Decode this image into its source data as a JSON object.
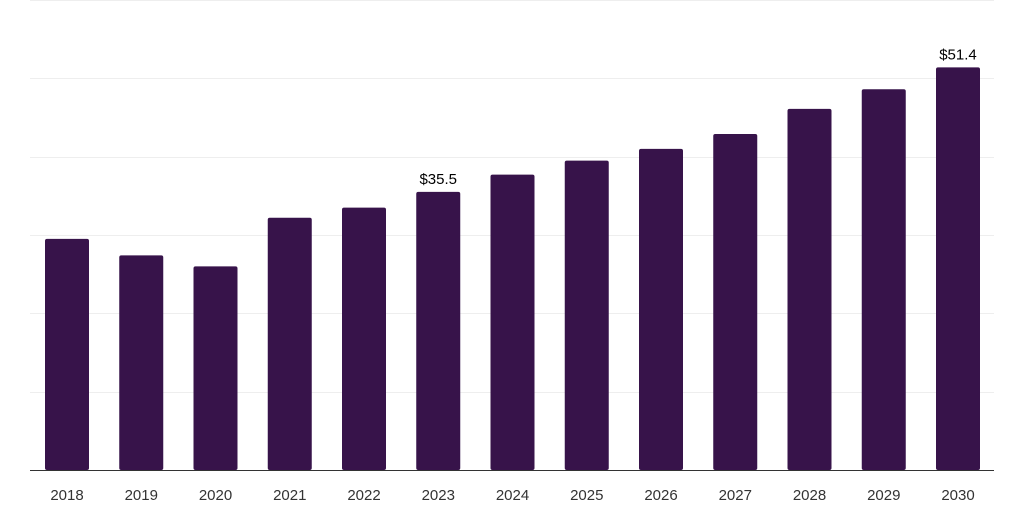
{
  "chart_data": {
    "type": "bar",
    "title": "",
    "xlabel": "",
    "ylabel": "",
    "categories": [
      "2018",
      "2019",
      "2020",
      "2021",
      "2022",
      "2023",
      "2024",
      "2025",
      "2026",
      "2027",
      "2028",
      "2029",
      "2030"
    ],
    "values": [
      29.5,
      27.4,
      26.0,
      32.2,
      33.5,
      35.5,
      37.7,
      39.5,
      41.0,
      42.9,
      46.1,
      48.6,
      51.4
    ],
    "data_labels": [
      "",
      "",
      "",
      "",
      "",
      "$35.5",
      "",
      "",
      "",
      "",
      "",
      "",
      "$51.4"
    ],
    "ylim": [
      0,
      60
    ],
    "ygrid_step": 10,
    "grid": true,
    "y_tick_labels_visible": false,
    "bar_color": "#37134a"
  }
}
